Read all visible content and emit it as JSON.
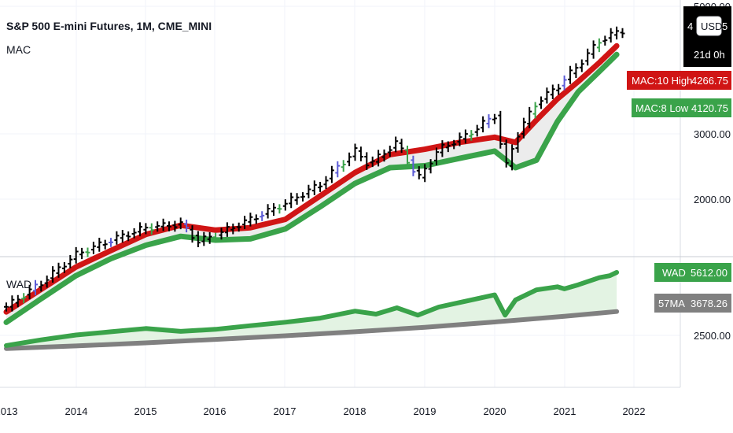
{
  "header": {
    "title": "S&P 500 E-mini Futures, 1M, CME_MINI",
    "indicator": "MAC"
  },
  "lower_pane": {
    "indicator": "WAD"
  },
  "price_badge": {
    "currency": "USD",
    "partial_price": "4",
    "partial_price_end": "5",
    "countdown": "21d 0h"
  },
  "labels": {
    "mac_high": {
      "name": "MAC:10 High",
      "value": "4266.75",
      "color": "#d01515"
    },
    "mac_low": {
      "name": "MAC:8 Low",
      "value": "4120.75",
      "color": "#3aa34a"
    },
    "wad": {
      "name": "WAD",
      "value": "5612.00",
      "color": "#3aa34a"
    },
    "ma57": {
      "name": "57MA",
      "value": "3678.26",
      "color": "#808080"
    }
  },
  "colors": {
    "bar": "#000000",
    "bar_blue": "#5b5bd6",
    "bar_green": "#3aa34a",
    "mac_high": "#d01515",
    "mac_low": "#3aa34a",
    "wad": "#3aa34a",
    "ma57": "#808080",
    "fill": "#e3f3e3"
  },
  "chart_data": [
    {
      "type": "line",
      "pane": "price",
      "title": "S&P 500 E-mini Futures, 1M, CME_MINI",
      "x_ticks": [
        "2013",
        "2014",
        "2015",
        "2016",
        "2017",
        "2018",
        "2019",
        "2020",
        "2021",
        "2022"
      ],
      "y_ticks": [
        "5000.00",
        "3000.00",
        "2000.00"
      ],
      "ylim": [
        1300,
        5000
      ],
      "series": [
        {
          "name": "MAC:10 High",
          "x": [
            2013.0,
            2013.5,
            2014.0,
            2014.5,
            2015.0,
            2015.5,
            2016.0,
            2016.5,
            2017.0,
            2017.5,
            2018.0,
            2018.5,
            2019.0,
            2019.5,
            2020.0,
            2020.3,
            2020.6,
            2020.9,
            2021.2,
            2021.5,
            2021.75
          ],
          "values": [
            1470,
            1610,
            1760,
            1880,
            2005,
            2080,
            2040,
            2060,
            2130,
            2340,
            2570,
            2760,
            2820,
            2900,
            2960,
            2900,
            3170,
            3450,
            3700,
            3990,
            4266.75
          ]
        },
        {
          "name": "MAC:8 Low",
          "x": [
            2013.0,
            2013.5,
            2014.0,
            2014.5,
            2015.0,
            2015.5,
            2016.0,
            2016.5,
            2017.0,
            2017.5,
            2018.0,
            2018.5,
            2019.0,
            2019.5,
            2020.0,
            2020.3,
            2020.6,
            2020.9,
            2021.2,
            2021.5,
            2021.75
          ],
          "values": [
            1410,
            1550,
            1700,
            1820,
            1920,
            1990,
            1960,
            1970,
            2050,
            2240,
            2460,
            2620,
            2640,
            2720,
            2800,
            2620,
            2700,
            3150,
            3550,
            3850,
            4120.75
          ]
        },
        {
          "name": "Price",
          "x": [
            2013.0,
            2013.5,
            2014.0,
            2014.5,
            2015.0,
            2015.5,
            2015.75,
            2016.0,
            2016.5,
            2017.0,
            2017.5,
            2018.0,
            2018.2,
            2018.6,
            2018.9,
            2019.2,
            2019.6,
            2020.0,
            2020.15,
            2020.3,
            2020.6,
            2020.9,
            2021.2,
            2021.5,
            2021.7,
            2021.85
          ],
          "values": [
            1500,
            1650,
            1850,
            1960,
            2060,
            2090,
            1950,
            2000,
            2130,
            2270,
            2450,
            2800,
            2650,
            2900,
            2500,
            2820,
            2980,
            3230,
            2600,
            2950,
            3400,
            3620,
            3950,
            4350,
            4480,
            4540
          ]
        }
      ]
    },
    {
      "type": "line",
      "pane": "indicator",
      "title": "WAD",
      "y_ticks": [
        "2500.00"
      ],
      "ylim": [
        1800,
        6000
      ],
      "series": [
        {
          "name": "WAD",
          "x": [
            2013.0,
            2013.5,
            2014.0,
            2014.5,
            2015.0,
            2015.5,
            2016.0,
            2016.5,
            2017.0,
            2017.5,
            2018.0,
            2018.3,
            2018.6,
            2018.9,
            2019.2,
            2019.6,
            2020.0,
            2020.15,
            2020.3,
            2020.6,
            2020.9,
            2021.0,
            2021.2,
            2021.5,
            2021.65,
            2021.75
          ],
          "values": [
            2000,
            2280,
            2520,
            2680,
            2840,
            2700,
            2800,
            2980,
            3150,
            3350,
            3700,
            3550,
            3860,
            3500,
            3900,
            4200,
            4500,
            3500,
            4250,
            4750,
            4900,
            4800,
            5000,
            5350,
            5450,
            5612.0
          ]
        },
        {
          "name": "57MA",
          "x": [
            2013.0,
            2014.0,
            2015.0,
            2016.0,
            2017.0,
            2018.0,
            2019.0,
            2020.0,
            2021.0,
            2021.75
          ],
          "values": [
            1850,
            1980,
            2130,
            2300,
            2480,
            2680,
            2900,
            3160,
            3440,
            3678.26
          ]
        }
      ]
    }
  ]
}
